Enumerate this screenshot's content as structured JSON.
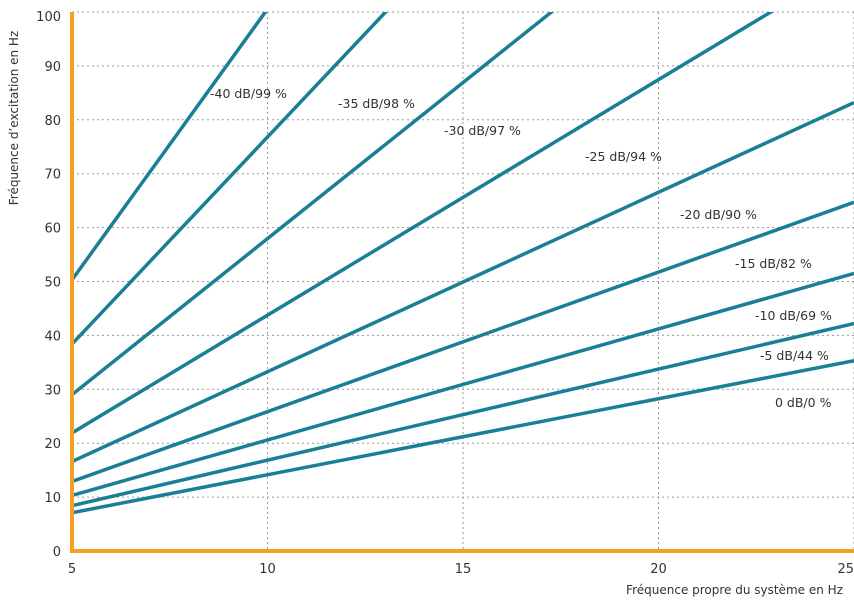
{
  "chart_data": {
    "type": "line",
    "title": "",
    "xlabel": "Fréquence propre du système en Hz",
    "ylabel": "Fréquence d’excitation en Hz",
    "xlim": [
      5,
      25
    ],
    "ylim": [
      0,
      100
    ],
    "x_ticks": [
      "5",
      "10",
      "15",
      "20",
      "25"
    ],
    "y_ticks": [
      "0",
      "10",
      "20",
      "30",
      "40",
      "50",
      "60",
      "70",
      "80",
      "90",
      "100"
    ],
    "grid": true,
    "colors": {
      "series": "#1a7f96",
      "axis": "#f5a020",
      "grid": "#9a9a9a"
    },
    "series": [
      {
        "name": "-40 dB/99 %",
        "slope": 10.05,
        "x": [
          5,
          10.1
        ],
        "y": [
          50.3,
          101.5
        ]
      },
      {
        "name": "-35 dB/98 %",
        "slope": 7.68,
        "x": [
          5,
          13.2
        ],
        "y": [
          38.4,
          101.4
        ]
      },
      {
        "name": "-30 dB/97 %",
        "slope": 5.79,
        "x": [
          5,
          17.4
        ],
        "y": [
          29.0,
          100.8
        ]
      },
      {
        "name": "-25 dB/94 %",
        "slope": 4.37,
        "x": [
          5,
          23.0
        ],
        "y": [
          21.9,
          100.5
        ]
      },
      {
        "name": "-20 dB/90 %",
        "slope": 3.33,
        "x": [
          5,
          25
        ],
        "y": [
          16.6,
          83.3
        ]
      },
      {
        "name": "-15 dB/82 %",
        "slope": 2.59,
        "x": [
          5,
          25
        ],
        "y": [
          12.9,
          64.6
        ]
      },
      {
        "name": "-10 dB/69 %",
        "slope": 2.06,
        "x": [
          5,
          25
        ],
        "y": [
          10.3,
          51.4
        ]
      },
      {
        "name": "-5 dB/44 %",
        "slope": 1.69,
        "x": [
          5,
          25
        ],
        "y": [
          8.4,
          42.2
        ]
      },
      {
        "name": "0 dB/0 %",
        "slope": 1.41,
        "x": [
          5,
          25
        ],
        "y": [
          7.1,
          35.5
        ]
      }
    ]
  }
}
